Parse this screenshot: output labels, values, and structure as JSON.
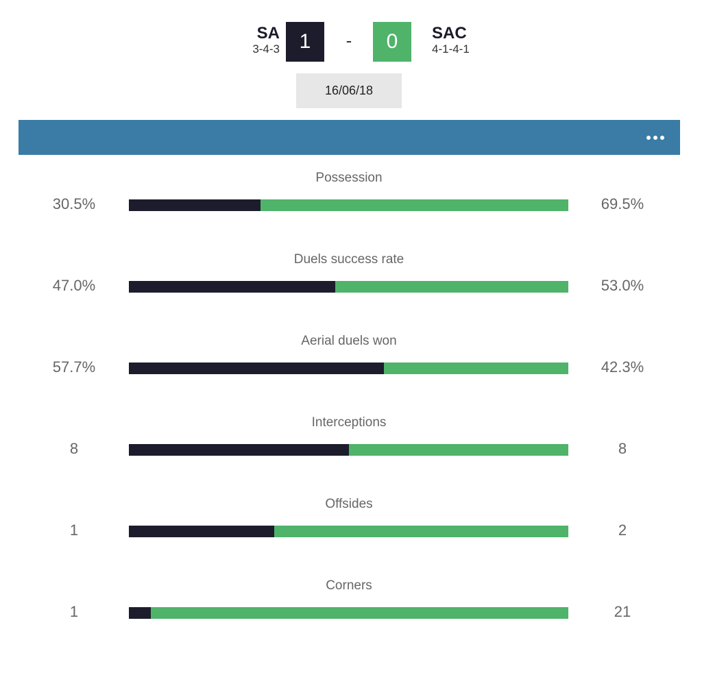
{
  "match": {
    "home": {
      "name": "SA",
      "formation": "3-4-3",
      "score": "1"
    },
    "away": {
      "name": "SAC",
      "formation": "4-1-4-1",
      "score": "0"
    },
    "separator": "-",
    "date": "16/06/18"
  },
  "colors": {
    "home": "#1c1c2c",
    "away": "#4fb36a",
    "banner": "#3a7ca5",
    "date_bg": "#e7e7e7"
  },
  "banner": {
    "menu_icon": "more-horizontal-icon"
  },
  "stats": [
    {
      "label": "Possession",
      "home": "30.5%",
      "away": "69.5%",
      "home_share": 0.3
    },
    {
      "label": "Duels success rate",
      "home": "47.0%",
      "away": "53.0%",
      "home_share": 0.47
    },
    {
      "label": "Aerial duels won",
      "home": "57.7%",
      "away": "42.3%",
      "home_share": 0.58
    },
    {
      "label": "Interceptions",
      "home": "8",
      "away": "8",
      "home_share": 0.5
    },
    {
      "label": "Offsides",
      "home": "1",
      "away": "2",
      "home_share": 0.33
    },
    {
      "label": "Corners",
      "home": "1",
      "away": "21",
      "home_share": 0.05
    }
  ]
}
